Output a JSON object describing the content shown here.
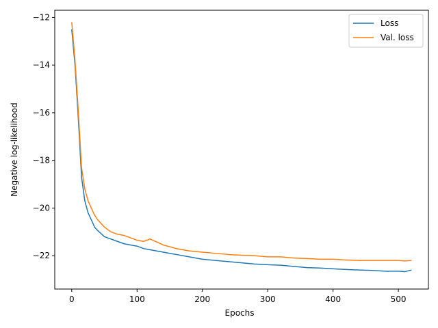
{
  "chart_data": {
    "type": "line",
    "title": "",
    "xlabel": "Epochs",
    "ylabel": "Negative log-likelihood",
    "xlim": [
      -26,
      546
    ],
    "ylim": [
      -23.4,
      -11.7
    ],
    "xticks": [
      0,
      100,
      200,
      300,
      400,
      500
    ],
    "yticks": [
      -22,
      -20,
      -18,
      -16,
      -14,
      -12
    ],
    "xtick_labels": [
      "0",
      "100",
      "200",
      "300",
      "400",
      "500"
    ],
    "ytick_labels": [
      "−22",
      "−20",
      "−18",
      "−16",
      "−14",
      "−12"
    ],
    "grid": false,
    "legend": "top-right",
    "series": [
      {
        "name": "Loss",
        "color": "#1f77b4",
        "x": [
          0,
          5,
          10,
          15,
          20,
          25,
          30,
          35,
          40,
          50,
          60,
          70,
          80,
          90,
          100,
          110,
          120,
          140,
          160,
          180,
          200,
          220,
          240,
          260,
          280,
          300,
          320,
          340,
          360,
          380,
          400,
          420,
          440,
          460,
          480,
          500,
          510,
          520
        ],
        "y": [
          -12.5,
          -14.0,
          -16.2,
          -18.7,
          -19.7,
          -20.2,
          -20.5,
          -20.8,
          -20.95,
          -21.2,
          -21.3,
          -21.4,
          -21.5,
          -21.55,
          -21.6,
          -21.7,
          -21.75,
          -21.85,
          -21.95,
          -22.05,
          -22.15,
          -22.2,
          -22.25,
          -22.3,
          -22.35,
          -22.38,
          -22.4,
          -22.45,
          -22.5,
          -22.52,
          -22.55,
          -22.58,
          -22.6,
          -22.62,
          -22.65,
          -22.65,
          -22.67,
          -22.6
        ]
      },
      {
        "name": "Val. loss",
        "color": "#ff7f0e",
        "x": [
          0,
          5,
          10,
          15,
          20,
          25,
          30,
          35,
          40,
          50,
          60,
          70,
          80,
          90,
          100,
          110,
          120,
          140,
          160,
          180,
          200,
          220,
          240,
          260,
          280,
          300,
          320,
          340,
          360,
          380,
          400,
          420,
          440,
          460,
          480,
          500,
          510,
          520
        ],
        "y": [
          -12.2,
          -13.8,
          -15.9,
          -18.3,
          -19.2,
          -19.7,
          -20.0,
          -20.3,
          -20.5,
          -20.8,
          -21.0,
          -21.1,
          -21.15,
          -21.25,
          -21.35,
          -21.4,
          -21.3,
          -21.55,
          -21.7,
          -21.8,
          -21.85,
          -21.9,
          -21.95,
          -21.98,
          -22.0,
          -22.05,
          -22.05,
          -22.1,
          -22.12,
          -22.15,
          -22.15,
          -22.18,
          -22.2,
          -22.2,
          -22.2,
          -22.2,
          -22.22,
          -22.2
        ]
      }
    ]
  }
}
